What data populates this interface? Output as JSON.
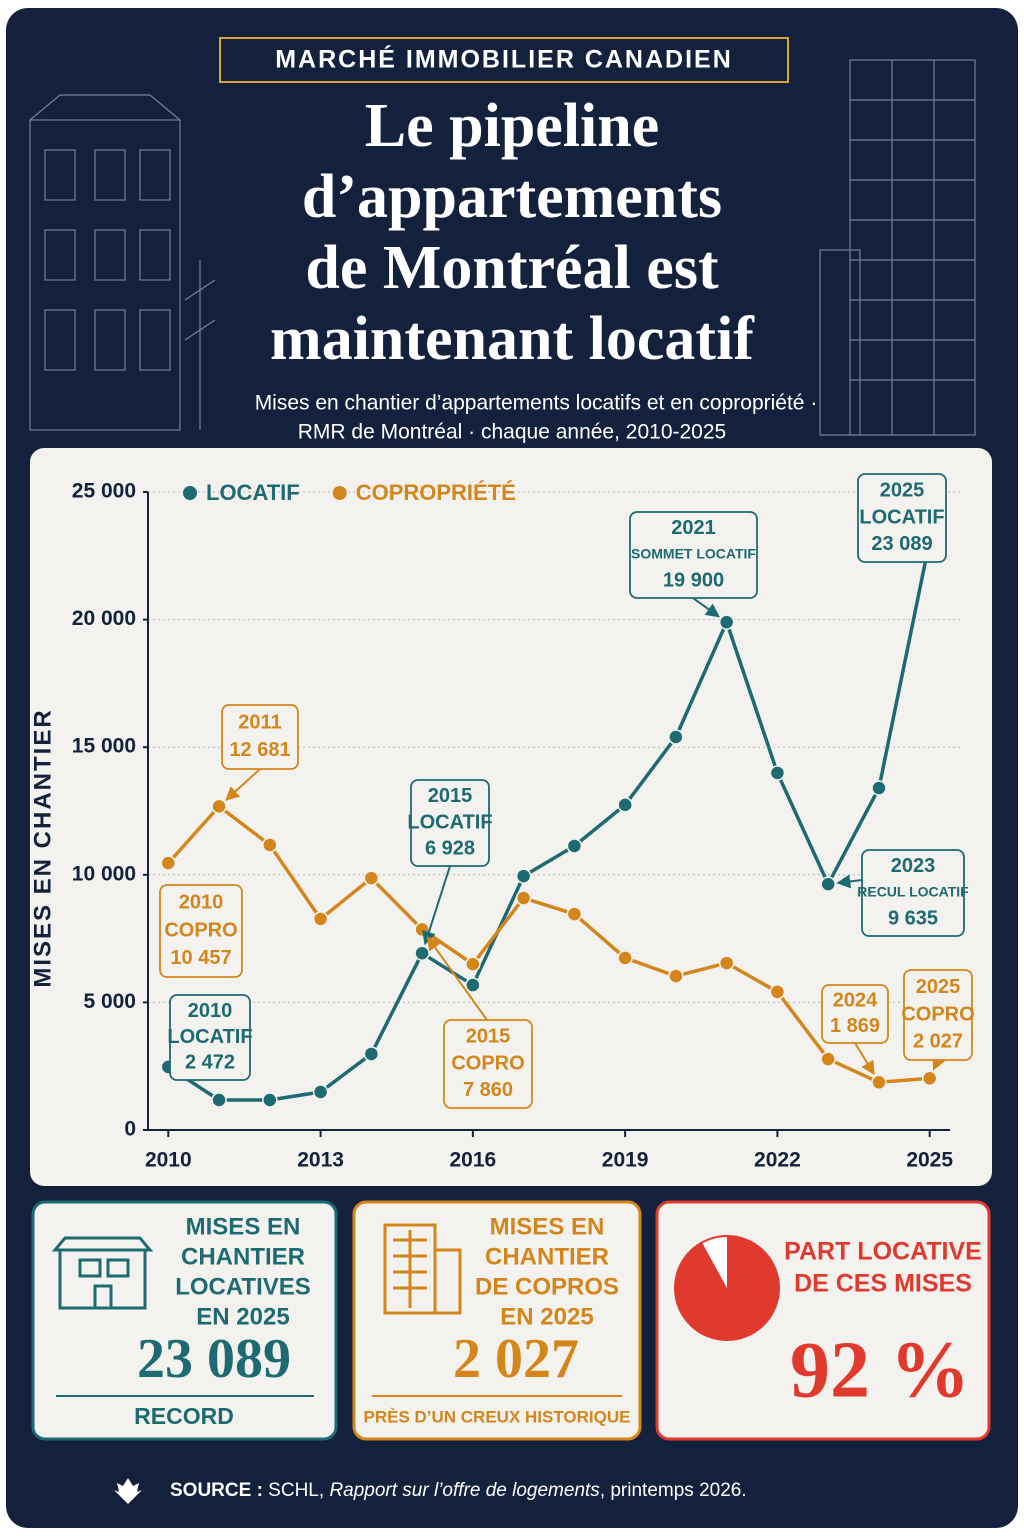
{
  "header": {
    "kicker": "MARCHÉ IMMOBILIER CANADIEN",
    "title": [
      "Le pipeline",
      "d’appartements",
      "de Montréal est",
      "maintenant locatif"
    ],
    "subtitle": [
      "Mises en chantier d’appartements locatifs et en copropriété ·",
      "RMR de Montréal · chaque année, 2010-2025"
    ]
  },
  "chart_data": {
    "type": "line",
    "x": [
      2010,
      2011,
      2012,
      2013,
      2014,
      2015,
      2016,
      2017,
      2018,
      2019,
      2020,
      2021,
      2022,
      2023,
      2024,
      2025
    ],
    "xlim": [
      2009.6,
      2025.4
    ],
    "xticks": [
      2010,
      2013,
      2016,
      2019,
      2022,
      2025
    ],
    "ylim": [
      0,
      25000
    ],
    "yticks": [
      0,
      {
        "value": 5000,
        "label": "5 000"
      },
      {
        "value": 10000,
        "label": "10 000"
      },
      {
        "value": 15000,
        "label": "15 000"
      },
      {
        "value": 20000,
        "label": "20 000"
      },
      {
        "value": 25000,
        "label": "25 000"
      }
    ],
    "y_label": "MISES EN CHANTIER",
    "grid": true,
    "legend": "top-left",
    "series": [
      {
        "name": "LOCATIF",
        "color": "#1d6a72",
        "values": [
          2472,
          1175,
          1175,
          1490,
          2980,
          6928,
          5680,
          9950,
          11130,
          12740,
          15400,
          19900,
          13990,
          9635,
          13400,
          23089
        ]
      },
      {
        "name": "COPROPRIÉTÉ",
        "color": "#d4861c",
        "values": [
          10457,
          12681,
          11170,
          8270,
          9870,
          7860,
          6500,
          9090,
          8460,
          6740,
          6030,
          6540,
          5410,
          2780,
          1869,
          2027
        ]
      }
    ],
    "annotations": [
      {
        "lines": [
          "2011",
          "12 681"
        ]
      },
      {
        "lines": [
          "2015",
          "LOCATIF",
          "6 928"
        ]
      },
      {
        "lines": [
          "2021",
          "SOMMET LOCATIF",
          "19 900"
        ]
      },
      {
        "lines": [
          "2025",
          "LOCATIF",
          "23 089"
        ]
      },
      {
        "lines": [
          "2023",
          "RECUL LOCATIF",
          "9 635"
        ]
      },
      {
        "lines": [
          "2010",
          "COPRO",
          "10 457"
        ]
      },
      {
        "lines": [
          "2010",
          "LOCATIF",
          "2 472"
        ]
      },
      {
        "lines": [
          "2015",
          "COPRO",
          "7 860"
        ]
      },
      {
        "lines": [
          "2024",
          "1 869"
        ]
      },
      {
        "lines": [
          "2025",
          "COPRO",
          "2 027"
        ]
      }
    ]
  },
  "cards": [
    {
      "title": [
        "MISES EN",
        "CHANTIER",
        "LOCATIVES",
        "EN 2025"
      ],
      "value": "23 089",
      "note": "RECORD"
    },
    {
      "title": [
        "MISES EN",
        "CHANTIER",
        "DE COPROS",
        "EN 2025"
      ],
      "value": "2 027",
      "note": "PRÈS D’UN CREUX HISTORIQUE"
    },
    {
      "title": [
        "PART LOCATIVE",
        "DE CES MISES"
      ],
      "value": 92,
      "value_label": "92 %"
    }
  ],
  "source": {
    "label": "SOURCE :",
    "text": " SCHL, ",
    "italic": "Rapport sur l’offre de logements",
    "end": ", printemps 2026."
  }
}
